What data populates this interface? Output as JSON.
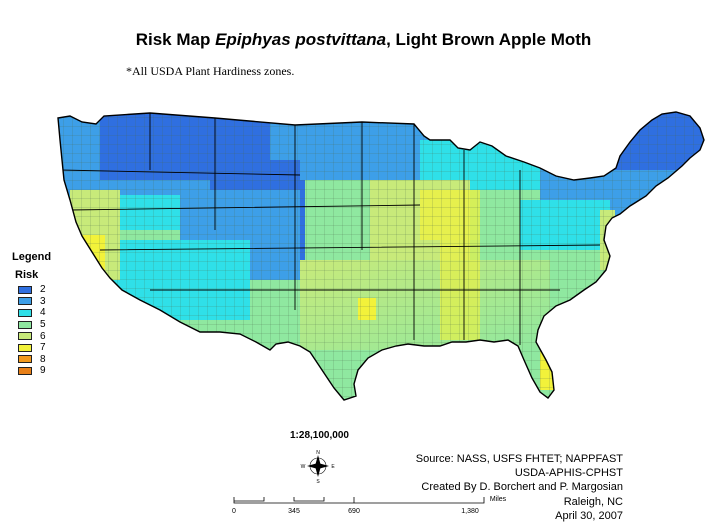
{
  "title": {
    "prefix": "Risk Map",
    "species": "Epiphyas postvittana",
    "suffix": ", Light Brown Apple Moth"
  },
  "subtitle": "*All USDA Plant Hardiness zones.",
  "legend": {
    "title": "Legend",
    "subtitle": "Risk",
    "items": [
      {
        "label": "2",
        "color": "#2f6fe0"
      },
      {
        "label": "3",
        "color": "#3d9fe8"
      },
      {
        "label": "4",
        "color": "#2fe0e8"
      },
      {
        "label": "5",
        "color": "#8fe8a0"
      },
      {
        "label": "6",
        "color": "#c8ea7a"
      },
      {
        "label": "7",
        "color": "#f2f23a"
      },
      {
        "label": "8",
        "color": "#f29a1e"
      },
      {
        "label": "9",
        "color": "#e88018"
      }
    ]
  },
  "map_scale": "1:28,100,000",
  "compass": {
    "n": "N",
    "s": "S",
    "e": "E",
    "w": "W"
  },
  "scalebar": {
    "ticks": [
      "0",
      "345",
      "690",
      "1,380"
    ],
    "unit": "Miles"
  },
  "source_lines": [
    "Source: NASS, USFS FHTET; NAPPFAST",
    "USDA-APHIS-CPHST",
    "Created By D. Borchert and P. Margosian",
    "Raleigh, NC",
    "April 30, 2007"
  ]
}
